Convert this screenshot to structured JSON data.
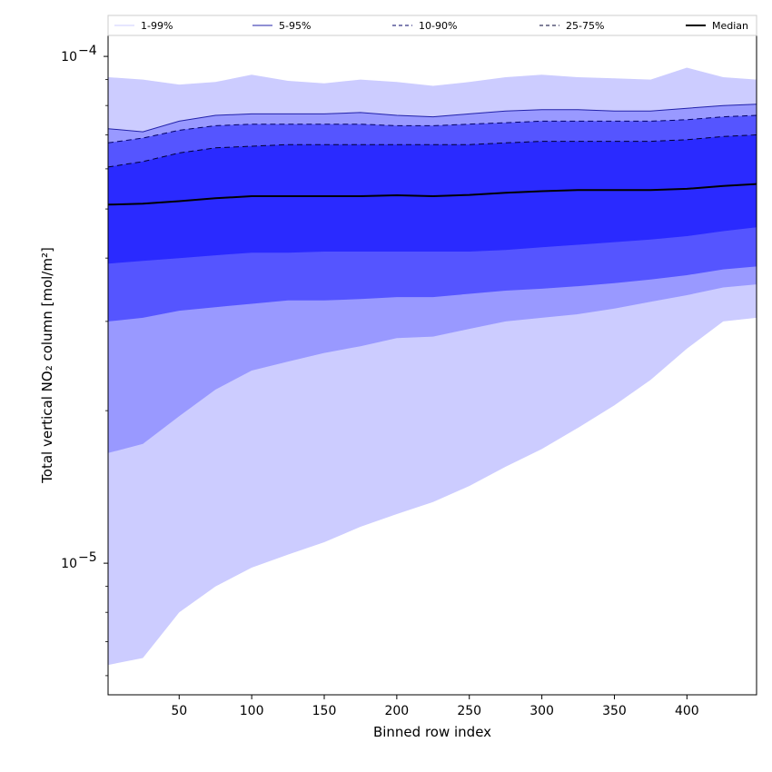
{
  "chart_data": {
    "type": "area",
    "xlabel": "Binned row index",
    "ylabel": "Total vertical NO₂ column [mol/m²]",
    "xlim": [
      1,
      448
    ],
    "ylim": [
      5.5e-06,
      0.00011
    ],
    "yscale": "log",
    "grid": false,
    "legend_position": "top, full width",
    "x_ticks": [
      50,
      100,
      150,
      200,
      250,
      300,
      350,
      400
    ],
    "y_ticks": [
      {
        "value": 1e-05,
        "label_base": "10",
        "label_exp": "−5"
      },
      {
        "value": 0.0001,
        "label_base": "10",
        "label_exp": "−4"
      }
    ],
    "x": [
      1,
      25,
      50,
      75,
      100,
      125,
      150,
      175,
      200,
      225,
      250,
      275,
      300,
      325,
      350,
      375,
      400,
      425,
      448
    ],
    "bands": [
      {
        "name": "1-99%",
        "fill": "#ccccff",
        "line": "#ccccff",
        "dash": "",
        "lower": [
          6.3e-06,
          6.5e-06,
          8e-06,
          9e-06,
          9.8e-06,
          1.04e-05,
          1.1e-05,
          1.18e-05,
          1.25e-05,
          1.32e-05,
          1.42e-05,
          1.55e-05,
          1.68e-05,
          1.85e-05,
          2.05e-05,
          2.3e-05,
          2.65e-05,
          3e-05,
          3.05e-05
        ],
        "upper": [
          9.1e-05,
          9e-05,
          8.8e-05,
          8.9e-05,
          9.2e-05,
          8.95e-05,
          8.85e-05,
          9e-05,
          8.9e-05,
          8.75e-05,
          8.9e-05,
          9.1e-05,
          9.2e-05,
          9.1e-05,
          9.05e-05,
          9e-05,
          9.5e-05,
          9.1e-05,
          9e-05
        ]
      },
      {
        "name": "5-95%",
        "fill": "#9999ff",
        "line": "#2222aa",
        "dash": "",
        "lower": [
          1.65e-05,
          1.72e-05,
          1.95e-05,
          2.2e-05,
          2.4e-05,
          2.5e-05,
          2.6e-05,
          2.68e-05,
          2.78e-05,
          2.8e-05,
          2.9e-05,
          3e-05,
          3.05e-05,
          3.1e-05,
          3.18e-05,
          3.28e-05,
          3.38e-05,
          3.5e-05,
          3.55e-05
        ],
        "upper": [
          7.2e-05,
          7.1e-05,
          7.45e-05,
          7.65e-05,
          7.7e-05,
          7.7e-05,
          7.7e-05,
          7.75e-05,
          7.65e-05,
          7.6e-05,
          7.7e-05,
          7.8e-05,
          7.85e-05,
          7.85e-05,
          7.8e-05,
          7.8e-05,
          7.9e-05,
          8e-05,
          8.05e-05
        ]
      },
      {
        "name": "10-90%",
        "fill": "#5555ff",
        "line": "#000066",
        "dash": "6,4",
        "lower": [
          3e-05,
          3.05e-05,
          3.15e-05,
          3.2e-05,
          3.25e-05,
          3.3e-05,
          3.3e-05,
          3.32e-05,
          3.35e-05,
          3.35e-05,
          3.4e-05,
          3.45e-05,
          3.48e-05,
          3.52e-05,
          3.57e-05,
          3.63e-05,
          3.7e-05,
          3.8e-05,
          3.85e-05
        ],
        "upper": [
          6.75e-05,
          6.9e-05,
          7.15e-05,
          7.3e-05,
          7.35e-05,
          7.35e-05,
          7.35e-05,
          7.35e-05,
          7.3e-05,
          7.3e-05,
          7.35e-05,
          7.4e-05,
          7.45e-05,
          7.45e-05,
          7.45e-05,
          7.45e-05,
          7.5e-05,
          7.6e-05,
          7.65e-05
        ]
      },
      {
        "name": "25-75%",
        "fill": "#2a2aff",
        "line": "#000033",
        "dash": "6,4",
        "lower": [
          3.9e-05,
          3.95e-05,
          4e-05,
          4.05e-05,
          4.1e-05,
          4.1e-05,
          4.12e-05,
          4.12e-05,
          4.12e-05,
          4.12e-05,
          4.12e-05,
          4.15e-05,
          4.2e-05,
          4.25e-05,
          4.3e-05,
          4.35e-05,
          4.42e-05,
          4.52e-05,
          4.6e-05
        ],
        "upper": [
          6.05e-05,
          6.2e-05,
          6.45e-05,
          6.6e-05,
          6.65e-05,
          6.7e-05,
          6.7e-05,
          6.7e-05,
          6.7e-05,
          6.7e-05,
          6.7e-05,
          6.75e-05,
          6.8e-05,
          6.8e-05,
          6.8e-05,
          6.8e-05,
          6.85e-05,
          6.95e-05,
          7e-05
        ]
      }
    ],
    "median": {
      "name": "Median",
      "line": "#000000",
      "values": [
        5.1e-05,
        5.12e-05,
        5.18e-05,
        5.25e-05,
        5.3e-05,
        5.3e-05,
        5.3e-05,
        5.3e-05,
        5.32e-05,
        5.3e-05,
        5.33e-05,
        5.38e-05,
        5.42e-05,
        5.45e-05,
        5.45e-05,
        5.45e-05,
        5.48e-05,
        5.55e-05,
        5.6e-05
      ]
    }
  }
}
